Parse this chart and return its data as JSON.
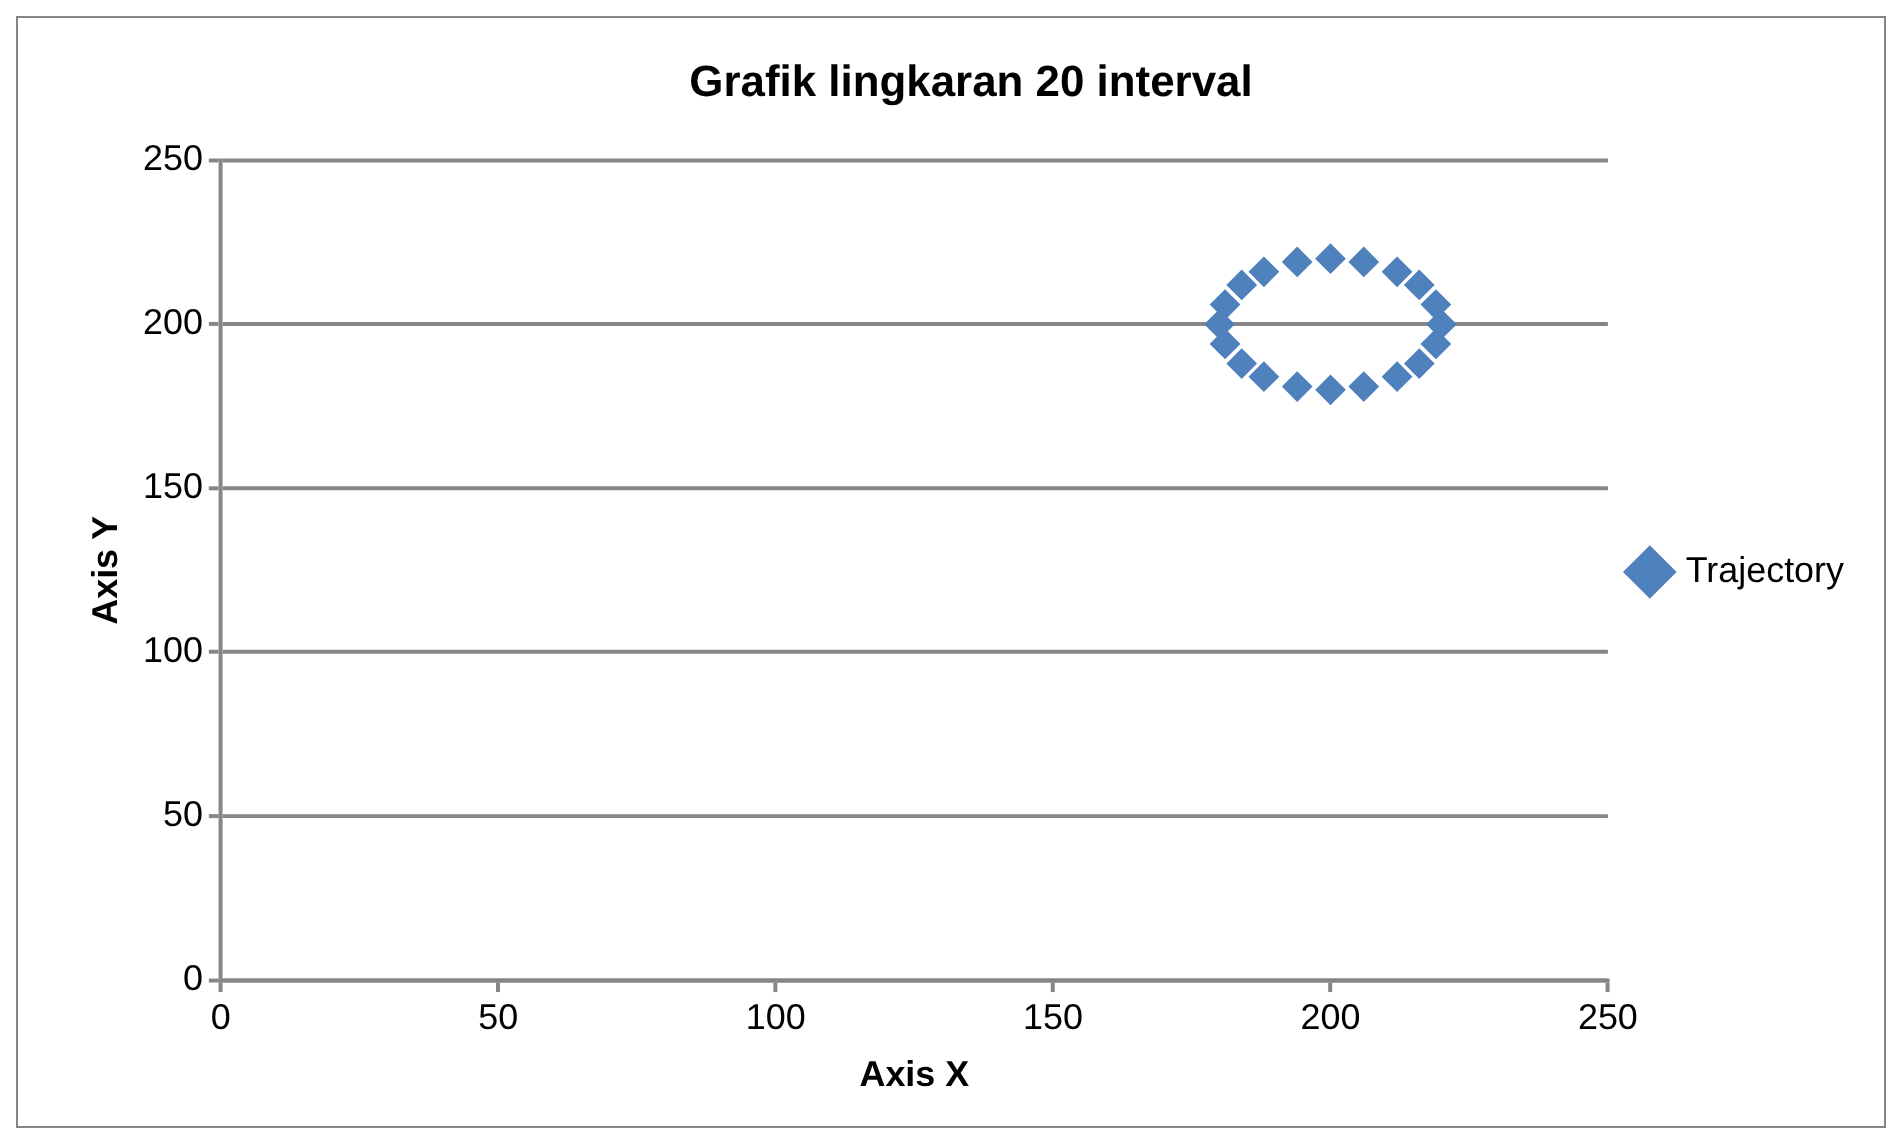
{
  "chart_data": {
    "type": "scatter",
    "title": "Grafik lingkaran 20 interval",
    "xlabel": "Axis X",
    "ylabel": "Axis Y",
    "series": [
      {
        "name": "Trajectory",
        "color": "#4f81bd",
        "x": [
          220,
          219,
          216,
          212,
          206,
          200,
          194,
          188,
          184,
          181,
          180,
          181,
          184,
          188,
          194,
          200,
          206,
          212,
          216,
          219
        ],
        "values": [
          200,
          206,
          212,
          216,
          219,
          220,
          219,
          216,
          212,
          206,
          200,
          194,
          188,
          184,
          181,
          180,
          181,
          184,
          188,
          194
        ]
      }
    ],
    "xlim": [
      0,
      250
    ],
    "xticks": [
      0,
      50,
      100,
      150,
      200,
      250
    ],
    "ylim": [
      0,
      250
    ],
    "yticks": [
      0,
      50,
      100,
      150,
      200,
      250
    ],
    "grid": "y",
    "legend": "right",
    "marker": "diamond"
  }
}
